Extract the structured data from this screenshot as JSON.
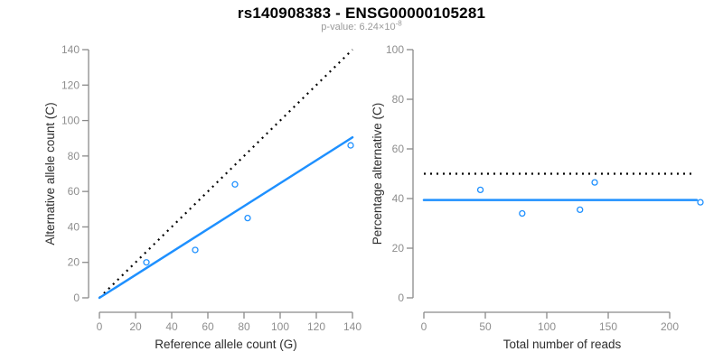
{
  "title": "rs140908383 - ENSG00000105281",
  "subtitle": {
    "prefix": "p-value: 6.24×10",
    "exponent": "-8"
  },
  "colors": {
    "fit_line": "#1E90FF",
    "point_stroke": "#1E90FF",
    "identity_line": "#000000",
    "axis": "#8a8a8a",
    "tick_label": "#8e8e8e",
    "axis_title": "#2e2e2e",
    "title": "#000000",
    "subtitle": "#9a9a9a"
  },
  "chart_data": [
    {
      "type": "scatter",
      "xlabel": "Reference allele count (G)",
      "ylabel": "Alternative allele count (C)",
      "xlim": [
        0,
        140
      ],
      "ylim": [
        0,
        140
      ],
      "xticks": [
        0,
        20,
        40,
        60,
        80,
        100,
        120,
        140
      ],
      "yticks": [
        0,
        20,
        40,
        60,
        80,
        100,
        120,
        140
      ],
      "points": [
        [
          26,
          20
        ],
        [
          53,
          27
        ],
        [
          75,
          64
        ],
        [
          82,
          45
        ],
        [
          139,
          86
        ]
      ],
      "fit_line": {
        "x": [
          0,
          140
        ],
        "y": [
          0,
          90.5
        ]
      },
      "identity_line": {
        "x": [
          0,
          140
        ],
        "y": [
          0,
          140
        ]
      },
      "grid": false,
      "legend": false
    },
    {
      "type": "scatter",
      "xlabel": "Total number of reads",
      "ylabel": "Percentage alternative (C)",
      "xlim": [
        0,
        225
      ],
      "ylim": [
        0,
        100
      ],
      "xticks": [
        0,
        50,
        100,
        150,
        200
      ],
      "yticks": [
        0,
        20,
        40,
        60,
        80,
        100
      ],
      "points": [
        [
          46,
          43.5
        ],
        [
          80,
          34
        ],
        [
          127,
          35.5
        ],
        [
          139,
          46.5
        ],
        [
          225,
          38.5
        ]
      ],
      "fit_line": {
        "x": [
          0,
          222
        ],
        "y": [
          39.4,
          39.4
        ]
      },
      "identity_line": {
        "x": [
          0,
          220
        ],
        "y": [
          50,
          50
        ]
      },
      "grid": false,
      "legend": false
    }
  ]
}
